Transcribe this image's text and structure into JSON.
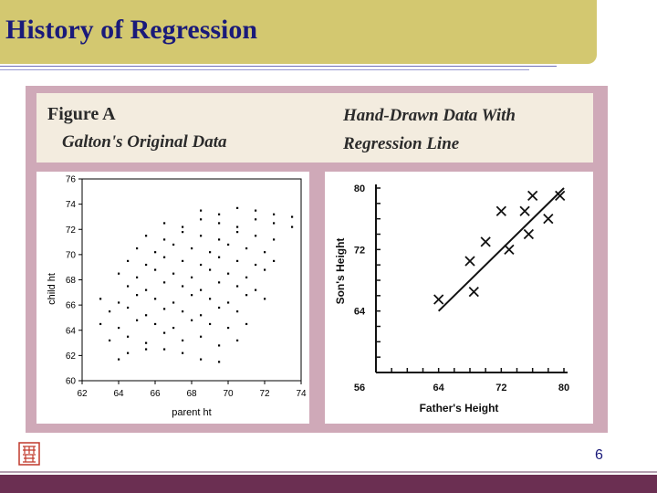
{
  "slide": {
    "title": "History of Regression",
    "page_number": "6"
  },
  "figure": {
    "label": "Figure A",
    "left_caption": "Galton's Original Data",
    "right_caption_line1": "Hand-Drawn Data With",
    "right_caption_line2": "Regression Line"
  },
  "chart_data": [
    {
      "type": "scatter",
      "title": "",
      "xlabel": "parent ht",
      "ylabel": "child ht",
      "xlim": [
        62,
        74
      ],
      "ylim": [
        60,
        76
      ],
      "xticks": [
        "62",
        "64",
        "66",
        "68",
        "70",
        "72",
        "74"
      ],
      "yticks": [
        "60",
        "62",
        "64",
        "66",
        "68",
        "70",
        "72",
        "74",
        "76"
      ],
      "series": [
        {
          "points_summary": "approx. 930 points clustered around parent ht 68, child ht 68",
          "points": [
            [
              64.0,
              61.7
            ],
            [
              64.5,
              62.2
            ],
            [
              65.5,
              62.5
            ],
            [
              66.5,
              62.5
            ],
            [
              67.5,
              62.2
            ],
            [
              68.5,
              61.7
            ],
            [
              69.5,
              61.5
            ],
            [
              63.5,
              63.2
            ],
            [
              64.5,
              63.5
            ],
            [
              65.5,
              63.0
            ],
            [
              66.5,
              63.8
            ],
            [
              67.5,
              63.2
            ],
            [
              68.5,
              63.5
            ],
            [
              69.5,
              62.8
            ],
            [
              70.5,
              63.2
            ],
            [
              63.0,
              64.5
            ],
            [
              64.0,
              64.2
            ],
            [
              65.0,
              64.8
            ],
            [
              66.0,
              64.5
            ],
            [
              67.0,
              64.2
            ],
            [
              68.0,
              64.8
            ],
            [
              69.0,
              64.5
            ],
            [
              70.0,
              64.2
            ],
            [
              71.0,
              64.5
            ],
            [
              63.5,
              65.5
            ],
            [
              64.5,
              65.8
            ],
            [
              65.5,
              65.2
            ],
            [
              66.5,
              65.7
            ],
            [
              67.5,
              65.5
            ],
            [
              68.5,
              65.2
            ],
            [
              69.5,
              65.8
            ],
            [
              70.5,
              65.5
            ],
            [
              63.0,
              66.5
            ],
            [
              64.0,
              66.2
            ],
            [
              65.0,
              66.8
            ],
            [
              66.0,
              66.5
            ],
            [
              67.0,
              66.2
            ],
            [
              68.0,
              66.8
            ],
            [
              69.0,
              66.5
            ],
            [
              70.0,
              66.2
            ],
            [
              71.0,
              66.8
            ],
            [
              72.0,
              66.5
            ],
            [
              64.5,
              67.5
            ],
            [
              65.5,
              67.2
            ],
            [
              66.5,
              67.8
            ],
            [
              67.5,
              67.5
            ],
            [
              68.5,
              67.2
            ],
            [
              69.5,
              67.8
            ],
            [
              70.5,
              67.5
            ],
            [
              71.5,
              67.2
            ],
            [
              64.0,
              68.5
            ],
            [
              65.0,
              68.2
            ],
            [
              66.0,
              68.8
            ],
            [
              67.0,
              68.5
            ],
            [
              68.0,
              68.2
            ],
            [
              69.0,
              68.8
            ],
            [
              70.0,
              68.5
            ],
            [
              71.0,
              68.2
            ],
            [
              72.0,
              68.8
            ],
            [
              64.5,
              69.5
            ],
            [
              65.5,
              69.2
            ],
            [
              66.5,
              69.8
            ],
            [
              67.5,
              69.5
            ],
            [
              68.5,
              69.2
            ],
            [
              69.5,
              69.8
            ],
            [
              70.5,
              69.5
            ],
            [
              71.5,
              69.2
            ],
            [
              72.5,
              69.5
            ],
            [
              65.0,
              70.5
            ],
            [
              66.0,
              70.2
            ],
            [
              67.0,
              70.8
            ],
            [
              68.0,
              70.5
            ],
            [
              69.0,
              70.2
            ],
            [
              70.0,
              70.8
            ],
            [
              71.0,
              70.5
            ],
            [
              72.0,
              70.2
            ],
            [
              65.5,
              71.5
            ],
            [
              66.5,
              71.2
            ],
            [
              67.5,
              71.8
            ],
            [
              68.5,
              71.5
            ],
            [
              69.5,
              71.2
            ],
            [
              70.5,
              71.8
            ],
            [
              71.5,
              71.5
            ],
            [
              72.5,
              71.2
            ],
            [
              66.5,
              72.5
            ],
            [
              67.5,
              72.2
            ],
            [
              68.5,
              72.8
            ],
            [
              69.5,
              72.5
            ],
            [
              70.5,
              72.2
            ],
            [
              71.5,
              72.8
            ],
            [
              72.5,
              72.5
            ],
            [
              73.5,
              72.2
            ],
            [
              68.5,
              73.5
            ],
            [
              69.5,
              73.2
            ],
            [
              70.5,
              73.7
            ],
            [
              71.5,
              73.5
            ],
            [
              72.5,
              73.2
            ],
            [
              73.5,
              73.0
            ]
          ]
        }
      ]
    },
    {
      "type": "scatter",
      "title": "",
      "xlabel": "Father's Height",
      "ylabel": "Son's Height",
      "xlim": [
        56,
        80
      ],
      "ylim": [
        56,
        80
      ],
      "xticks": [
        "64",
        "72",
        "80"
      ],
      "yticks": [
        "56",
        "64",
        "72",
        "80"
      ],
      "series": [
        {
          "marker": "x",
          "points": [
            [
              64,
              65.5
            ],
            [
              68,
              70.5
            ],
            [
              68.5,
              66.5
            ],
            [
              70,
              73
            ],
            [
              72,
              77
            ],
            [
              73,
              72
            ],
            [
              75,
              77
            ],
            [
              75.5,
              74
            ],
            [
              76,
              79
            ],
            [
              78,
              76
            ],
            [
              79.5,
              79
            ]
          ]
        }
      ],
      "regression_line": [
        [
          64,
          64
        ],
        [
          80,
          80
        ]
      ]
    }
  ]
}
